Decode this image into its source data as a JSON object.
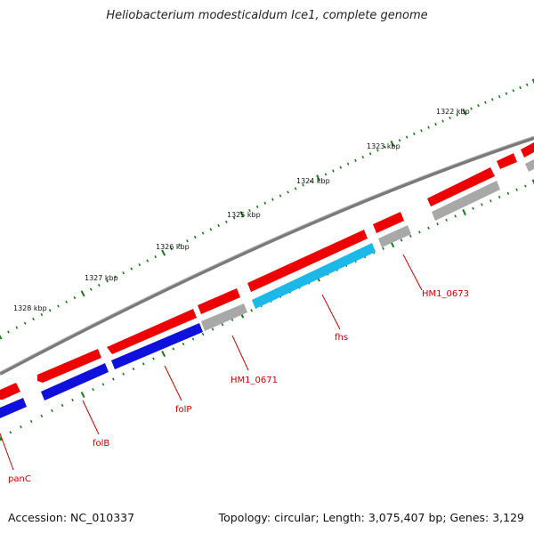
{
  "title": "Heliobacterium modesticaldum Ice1, complete genome",
  "footer": {
    "accession": "Accession: NC_010337",
    "summary": "Topology: circular; Length: 3,075,407 bp; Genes: 3,129"
  },
  "ruler": {
    "labels": [
      "1322 kbp",
      "1323 kbp",
      "1324 kbp",
      "1325 kbp",
      "1326 kbp",
      "1327 kbp",
      "1328 kbp"
    ]
  },
  "gene_labels": [
    "HM1_0673",
    "fhs",
    "HM1_0671",
    "folP",
    "folB",
    "panC"
  ],
  "colors": {
    "backbone": "#7a7a7a",
    "forward_cds": "#ee0000",
    "reverse_cds": "#1010dd",
    "other_cds": "#a8a8a8",
    "highlight_cds": "#1cb8e8",
    "tick": "#1a7a1a",
    "label": "#cc0000"
  }
}
